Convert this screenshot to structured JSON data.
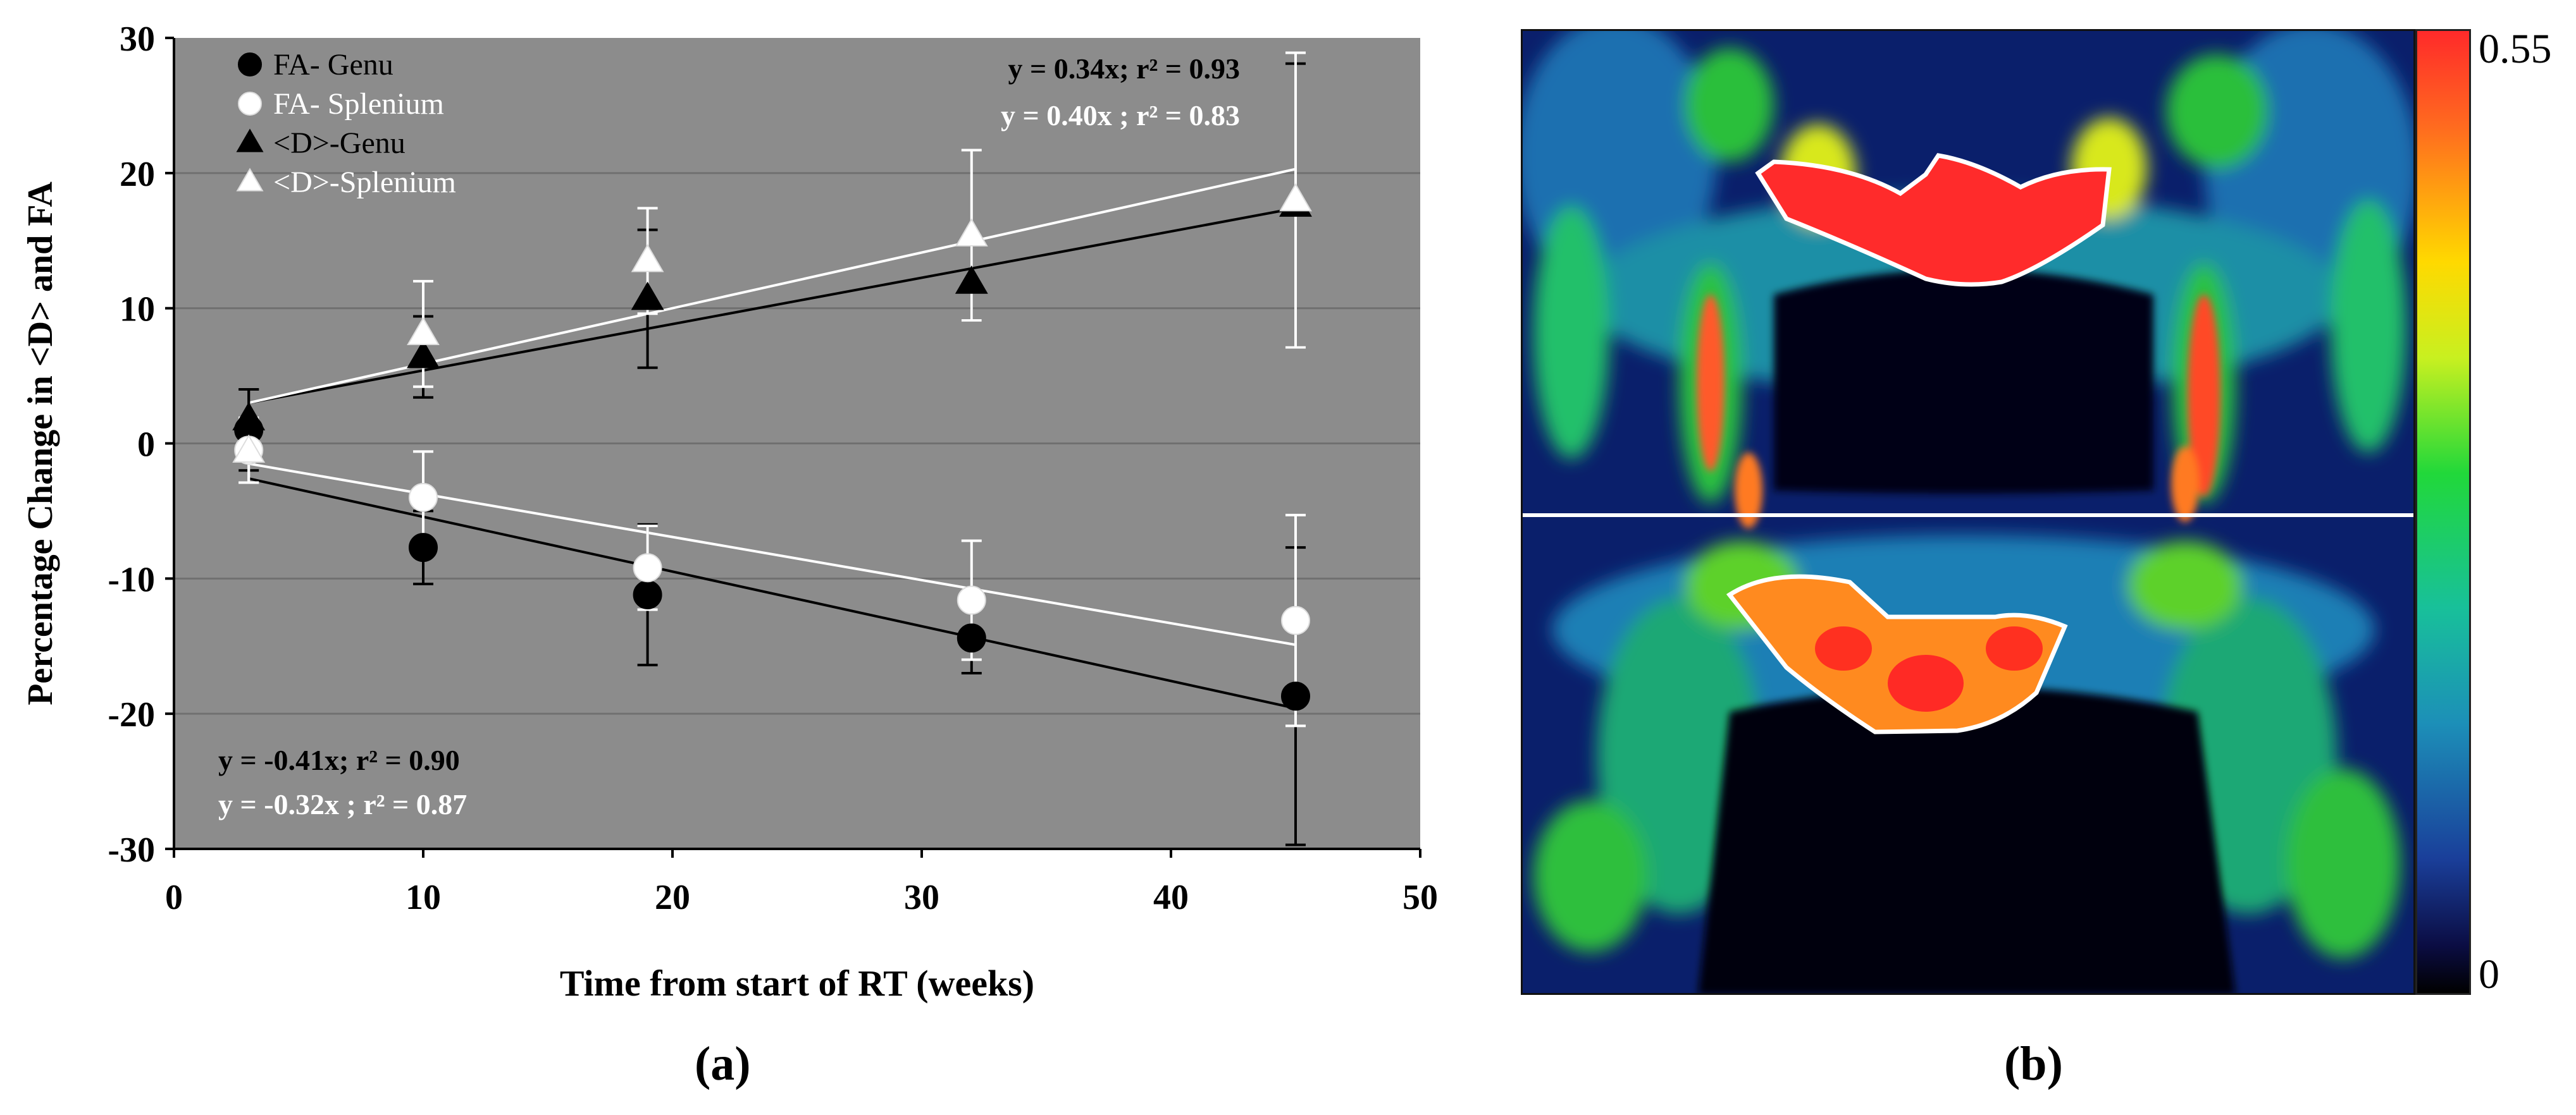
{
  "chart_data": {
    "type": "scatter",
    "xlabel": "Time from start of RT (weeks)",
    "ylabel": "Percentage Change in <D> and FA",
    "xlim": [
      0,
      50
    ],
    "ylim": [
      -30,
      30
    ],
    "xticks": [
      0,
      10,
      20,
      30,
      40,
      50
    ],
    "yticks": [
      30,
      20,
      10,
      0,
      -10,
      -20,
      -30
    ],
    "grid": true,
    "legend_position": "top-left",
    "series": [
      {
        "name": "FA- Genu",
        "marker": "circle",
        "color": "#000000",
        "x": [
          3,
          10,
          19,
          32,
          45
        ],
        "y": [
          1.0,
          -7.7,
          -11.2,
          -14.4,
          -18.7
        ],
        "err": [
          3.0,
          2.7,
          5.2,
          2.6,
          11.0
        ]
      },
      {
        "name": "FA- Splenium",
        "marker": "circle",
        "color": "#ffffff",
        "x": [
          3,
          10,
          19,
          32,
          45
        ],
        "y": [
          -0.5,
          -4.0,
          -9.2,
          -11.6,
          -13.1
        ],
        "err": [
          2.4,
          3.4,
          3.1,
          4.4,
          7.8
        ]
      },
      {
        "name": "<D>-Genu",
        "marker": "triangle",
        "color": "#000000",
        "x": [
          3,
          10,
          19,
          32,
          45
        ],
        "y": [
          1.8,
          6.4,
          10.7,
          11.9,
          17.6
        ],
        "err": [
          2.2,
          3.0,
          5.1,
          2.8,
          10.5
        ]
      },
      {
        "name": "<D>-Splenium",
        "marker": "triangle",
        "color": "#ffffff",
        "x": [
          3,
          10,
          19,
          32,
          45
        ],
        "y": [
          -0.6,
          8.1,
          13.5,
          15.4,
          18.0
        ],
        "err": [
          2.3,
          3.9,
          3.9,
          6.3,
          10.9
        ]
      }
    ],
    "fit_lines": [
      {
        "color": "#000000",
        "x": [
          3,
          45
        ],
        "y": [
          3.0,
          17.4
        ]
      },
      {
        "color": "#ffffff",
        "x": [
          3,
          45
        ],
        "y": [
          3.0,
          20.3
        ]
      },
      {
        "color": "#000000",
        "x": [
          3,
          45
        ],
        "y": [
          -2.6,
          -19.6
        ]
      },
      {
        "color": "#ffffff",
        "x": [
          3,
          45
        ],
        "y": [
          -1.5,
          -14.9
        ]
      }
    ],
    "annotations": [
      {
        "text": "y = 0.34x; r² = 0.93",
        "color": "#000000"
      },
      {
        "text": "y = 0.40x ; r² = 0.83",
        "color": "#ffffff"
      },
      {
        "text": "y = -0.41x; r² = 0.90",
        "color": "#000000"
      },
      {
        "text": "y = -0.32x ; r² = 0.87",
        "color": "#ffffff"
      }
    ]
  },
  "panels": {
    "a": "(a)",
    "b": "(b)"
  },
  "colorbar": {
    "max": "0.55",
    "min": "0"
  }
}
